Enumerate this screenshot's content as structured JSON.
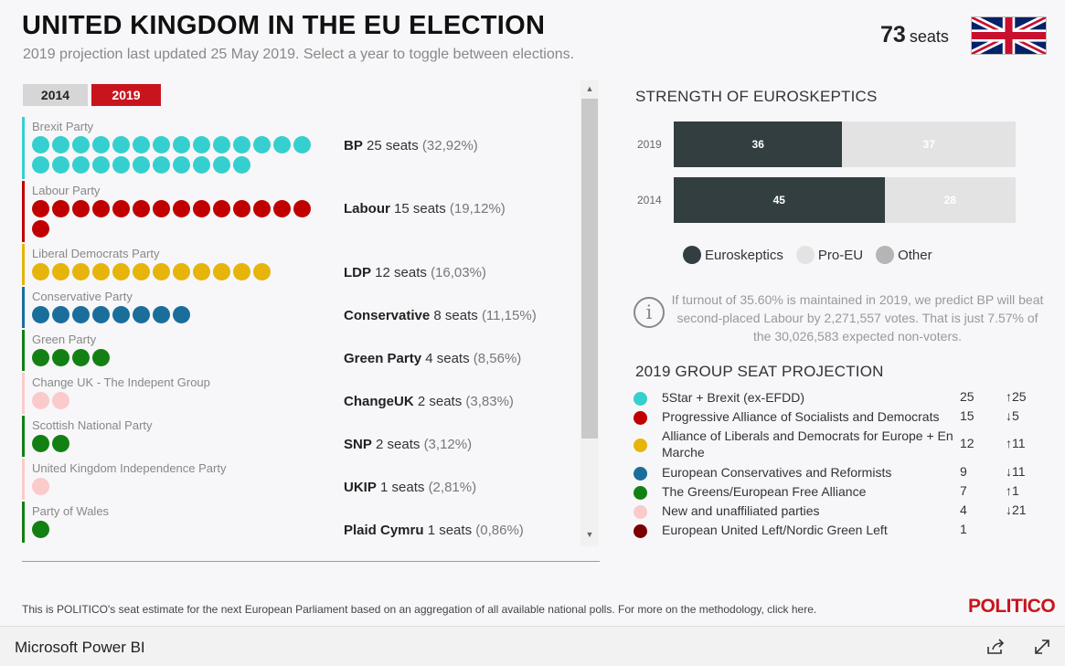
{
  "header": {
    "title": "UNITED KINGDOM IN THE EU ELECTION",
    "subtitle": "2019 projection last updated 25 May 2019. Select a year to toggle between elections.",
    "total_seats_value": "73",
    "total_seats_unit": "seats",
    "flag_icon": "uk-flag-icon"
  },
  "year_tabs": [
    {
      "label": "2014",
      "selected": false
    },
    {
      "label": "2019",
      "selected": true
    }
  ],
  "parties": [
    {
      "name": "Brexit Party",
      "abbr": "BP",
      "seats": 25,
      "seats_text": "25 seats",
      "pct": "(32,92%)",
      "color": "#36cfcf"
    },
    {
      "name": "Labour Party",
      "abbr": "Labour",
      "seats": 15,
      "seats_text": "15 seats",
      "pct": "(19,12%)",
      "color": "#c00000"
    },
    {
      "name": "Liberal Democrats Party",
      "abbr": "LDP",
      "seats": 12,
      "seats_text": "12 seats",
      "pct": "(16,03%)",
      "color": "#e6b40a"
    },
    {
      "name": "Conservative Party",
      "abbr": "Conservative",
      "seats": 8,
      "seats_text": "8 seats",
      "pct": "(11,15%)",
      "color": "#1a6e9c"
    },
    {
      "name": "Green Party",
      "abbr": "Green Party",
      "seats": 4,
      "seats_text": "4 seats",
      "pct": "(8,56%)",
      "color": "#138013"
    },
    {
      "name": "Change UK - The Indepent Group",
      "abbr": "ChangeUK",
      "seats": 2,
      "seats_text": "2 seats",
      "pct": "(3,83%)",
      "color": "#fbcaca"
    },
    {
      "name": "Scottish National Party",
      "abbr": "SNP",
      "seats": 2,
      "seats_text": "2 seats",
      "pct": "(3,12%)",
      "color": "#138013"
    },
    {
      "name": "United Kingdom Independence Party",
      "abbr": "UKIP",
      "seats": 1,
      "seats_text": "1 seats",
      "pct": "(2,81%)",
      "color": "#fbcaca"
    },
    {
      "name": "Party of Wales",
      "abbr": "Plaid Cymru",
      "seats": 1,
      "seats_text": "1 seats",
      "pct": "(0,86%)",
      "color": "#138013"
    }
  ],
  "strength": {
    "title": "STRENGTH OF EUROSKEPTICS",
    "rows": [
      {
        "year": "2019",
        "euroskeptics": 36,
        "pro_eu": 37
      },
      {
        "year": "2014",
        "euroskeptics": 45,
        "pro_eu": 28
      }
    ],
    "legend": [
      {
        "label": "Euroskeptics",
        "color": "#323e40"
      },
      {
        "label": "Pro-EU",
        "color": "#e3e3e3"
      },
      {
        "label": "Other",
        "color": "#b5b5b5"
      }
    ]
  },
  "info": {
    "icon": "info-icon",
    "text": "If turnout of 35.60% is maintained in 2019, we predict BP will beat second-placed Labour by 2,271,557 votes. That is just 7.57% of the 30,026,583 expected non-voters."
  },
  "groups": {
    "title": "2019 GROUP SEAT PROJECTION",
    "rows": [
      {
        "name": "5Star + Brexit (ex-EFDD)",
        "seats": "25",
        "change": "↑25",
        "color": "#36cfcf"
      },
      {
        "name": "Progressive Alliance of Socialists and Democrats",
        "seats": "15",
        "change": "↓5",
        "color": "#c00000"
      },
      {
        "name": "Alliance of Liberals and Democrats for Europe + En Marche",
        "seats": "12",
        "change": "↑11",
        "color": "#e6b40a"
      },
      {
        "name": "European Conservatives and Reformists",
        "seats": "9",
        "change": "↓11",
        "color": "#1a6e9c"
      },
      {
        "name": "The Greens/European Free Alliance",
        "seats": "7",
        "change": "↑1",
        "color": "#138013"
      },
      {
        "name": "New and unaffiliated parties",
        "seats": "4",
        "change": "↓21",
        "color": "#fbcaca"
      },
      {
        "name": "European United Left/Nordic Green Left",
        "seats": "1",
        "change": "",
        "color": "#7a0000"
      }
    ]
  },
  "footnote": "This is POLITICO's seat estimate for the next European Parliament based on an aggregation of all available national polls. For more on the methodology, click here.",
  "logo": "POLITICO",
  "footer": {
    "brand": "Microsoft Power BI",
    "share_icon": "share-icon",
    "expand_icon": "expand-icon"
  }
}
